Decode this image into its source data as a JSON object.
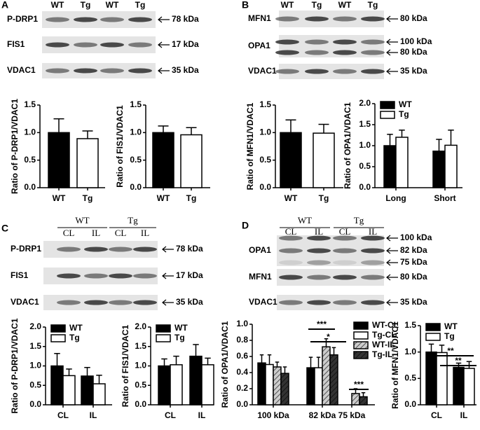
{
  "blots": [
    {
      "panel": "A",
      "lanes": [
        "WT",
        "Tg",
        "WT",
        "Tg"
      ],
      "rows": [
        {
          "label": "P-DRP1",
          "markers": [
            "78 kDa"
          ]
        },
        {
          "label": "FIS1",
          "markers": [
            "17 kDa"
          ]
        },
        {
          "label": "VDAC1",
          "markers": [
            "35 kDa"
          ]
        }
      ]
    },
    {
      "panel": "B",
      "lanes": [
        "WT",
        "Tg",
        "WT",
        "Tg"
      ],
      "rows": [
        {
          "label": "MFN1",
          "markers": [
            "80 kDa"
          ]
        },
        {
          "label": "OPA1",
          "markers": [
            "100 kDa",
            "80 kDa"
          ]
        },
        {
          "label": "VDAC1",
          "markers": [
            "35 kDa"
          ]
        }
      ]
    },
    {
      "panel": "C",
      "groups": [
        {
          "label": "WT",
          "lanes": [
            "CL",
            "IL"
          ]
        },
        {
          "label": "Tg",
          "lanes": [
            "CL",
            "IL"
          ]
        }
      ],
      "rows": [
        {
          "label": "P-DRP1",
          "markers": [
            "78 kDa"
          ]
        },
        {
          "label": "FIS1",
          "markers": [
            "17 kDa"
          ]
        },
        {
          "label": "VDAC1",
          "markers": [
            "35 kDa"
          ]
        }
      ]
    },
    {
      "panel": "D",
      "groups": [
        {
          "label": "WT",
          "lanes": [
            "CL",
            "IL"
          ]
        },
        {
          "label": "Tg",
          "lanes": [
            "CL",
            "IL"
          ]
        }
      ],
      "rows": [
        {
          "label": "OPA1",
          "markers": [
            "100 kDa",
            "82 kDa",
            "75 kDa"
          ]
        },
        {
          "label": "MFN1",
          "markers": [
            "80 kDa"
          ]
        },
        {
          "label": "VDAC1",
          "markers": [
            "35 kDa"
          ]
        }
      ]
    }
  ],
  "chart_data": [
    {
      "type": "bar",
      "ylabel": "Ratio of P-DRP1/VDAC1",
      "categories": [
        "WT",
        "Tg"
      ],
      "values": [
        1.0,
        0.89
      ],
      "errors": [
        0.25,
        0.14
      ],
      "colors": [
        "#000000",
        "#ffffff"
      ],
      "ylim": [
        0,
        1.5
      ],
      "yticks": [
        {
          "value": 0,
          "label": "0.0"
        },
        0.5,
        {
          "value": 1,
          "label": "1.0"
        },
        1.5
      ]
    },
    {
      "type": "bar",
      "ylabel": "Ratio of FIS1/VDAC1",
      "categories": [
        "WT",
        "Tg"
      ],
      "values": [
        1.0,
        0.96
      ],
      "errors": [
        0.12,
        0.13
      ],
      "colors": [
        "#000000",
        "#ffffff"
      ],
      "ylim": [
        0,
        1.5
      ],
      "yticks": [
        {
          "value": 0,
          "label": "0.0"
        },
        0.5,
        {
          "value": 1,
          "label": "1.0"
        },
        1.5
      ]
    },
    {
      "type": "bar",
      "ylabel": "Ratio of MFN1/VDAC1",
      "categories": [
        "WT",
        "Tg"
      ],
      "values": [
        1.0,
        0.99
      ],
      "errors": [
        0.23,
        0.16
      ],
      "colors": [
        "#000000",
        "#ffffff"
      ],
      "ylim": [
        0,
        1.5
      ],
      "yticks": [
        {
          "value": 0,
          "label": "0.0"
        },
        0.5,
        {
          "value": 1,
          "label": "1.0"
        },
        1.5
      ]
    },
    {
      "type": "bar",
      "ylabel": "Ratio of OPA1/VDAC1",
      "categories": [
        "Long",
        "Short"
      ],
      "legend": "upper left",
      "series": [
        {
          "name": "WT",
          "color": "#000000",
          "values": [
            1.0,
            0.87
          ],
          "errors": [
            0.27,
            0.28
          ]
        },
        {
          "name": "Tg",
          "color": "#ffffff",
          "values": [
            1.2,
            1.01
          ],
          "errors": [
            0.17,
            0.36
          ]
        }
      ],
      "ylim": [
        0,
        2
      ],
      "yticks": [
        {
          "value": 0,
          "label": "0.0"
        },
        0.5,
        {
          "value": 1,
          "label": "1.0"
        },
        1.5,
        {
          "value": 2,
          "label": "2.0"
        }
      ]
    },
    {
      "type": "bar",
      "ylabel": "Ratio of P-DRP1/VDAC1",
      "categories": [
        "CL",
        "IL"
      ],
      "legend": "upper left",
      "series": [
        {
          "name": "WT",
          "color": "#000000",
          "values": [
            1.0,
            0.74
          ],
          "errors": [
            0.32,
            0.22
          ]
        },
        {
          "name": "Tg",
          "color": "#ffffff",
          "values": [
            0.75,
            0.54
          ],
          "errors": [
            0.17,
            0.22
          ]
        }
      ],
      "ylim": [
        0,
        2
      ],
      "yticks": [
        {
          "value": 0,
          "label": "0.0"
        },
        0.5,
        {
          "value": 1,
          "label": "1.0"
        },
        1.5,
        {
          "value": 2,
          "label": "2.0"
        }
      ]
    },
    {
      "type": "bar",
      "ylabel": "Ratio of FIS1/VDAC1",
      "categories": [
        "CL",
        "IL"
      ],
      "legend": "upper left",
      "series": [
        {
          "name": "WT",
          "color": "#000000",
          "values": [
            1.0,
            1.25
          ],
          "errors": [
            0.18,
            0.3
          ]
        },
        {
          "name": "Tg",
          "color": "#ffffff",
          "values": [
            1.03,
            1.03
          ],
          "errors": [
            0.22,
            0.17
          ]
        }
      ],
      "ylim": [
        0,
        2
      ],
      "yticks": [
        {
          "value": 0,
          "label": "0.0"
        },
        0.5,
        {
          "value": 1,
          "label": "1.0"
        },
        1.5,
        {
          "value": 2,
          "label": "2.0"
        }
      ]
    },
    {
      "type": "bar",
      "ylabel": "Ratio of OPA1/VDAC1",
      "categories": [
        "100 kDa",
        "82 kDa",
        "75 kDa"
      ],
      "legend": "upper right",
      "series": [
        {
          "name": "WT-CL",
          "color": "#000000",
          "values": [
            0.52,
            0.46,
            null
          ],
          "errors": [
            0.1,
            0.13,
            null
          ]
        },
        {
          "name": "Tg-CL",
          "color": "#ffffff",
          "values": [
            0.5,
            0.46,
            null
          ],
          "errors": [
            0.12,
            0.13,
            null
          ]
        },
        {
          "name": "WT-IL",
          "color": "#cccccc",
          "hatch": true,
          "values": [
            0.47,
            0.72,
            0.14
          ],
          "errors": [
            0.06,
            0.1,
            0.06
          ]
        },
        {
          "name": "Tg-IL",
          "color": "#333333",
          "hatch": true,
          "values": [
            0.39,
            0.62,
            0.1
          ],
          "errors": [
            0.08,
            0.09,
            0.05
          ]
        }
      ],
      "ylim": [
        0,
        1
      ],
      "yticks": [
        {
          "value": 0,
          "label": "0.0"
        },
        0.2,
        0.4,
        0.6,
        0.8,
        {
          "value": 1,
          "label": "1.0"
        }
      ],
      "annotations": [
        "***",
        "*",
        "***"
      ]
    },
    {
      "type": "bar",
      "ylabel": "Ratio of MFN1/VDAC1",
      "categories": [
        "CL",
        "IL"
      ],
      "legend": "upper left",
      "series": [
        {
          "name": "WT",
          "color": "#000000",
          "values": [
            1.0,
            0.71
          ],
          "errors": [
            0.15,
            0.08
          ]
        },
        {
          "name": "Tg",
          "color": "#ffffff",
          "values": [
            0.99,
            0.69
          ],
          "errors": [
            0.14,
            0.13
          ]
        }
      ],
      "ylim": [
        0,
        1.5
      ],
      "yticks": [
        {
          "value": 0,
          "label": "0.0"
        },
        0.5,
        {
          "value": 1,
          "label": "1.0"
        },
        1.5
      ],
      "annotations": [
        "**",
        "**"
      ]
    }
  ]
}
